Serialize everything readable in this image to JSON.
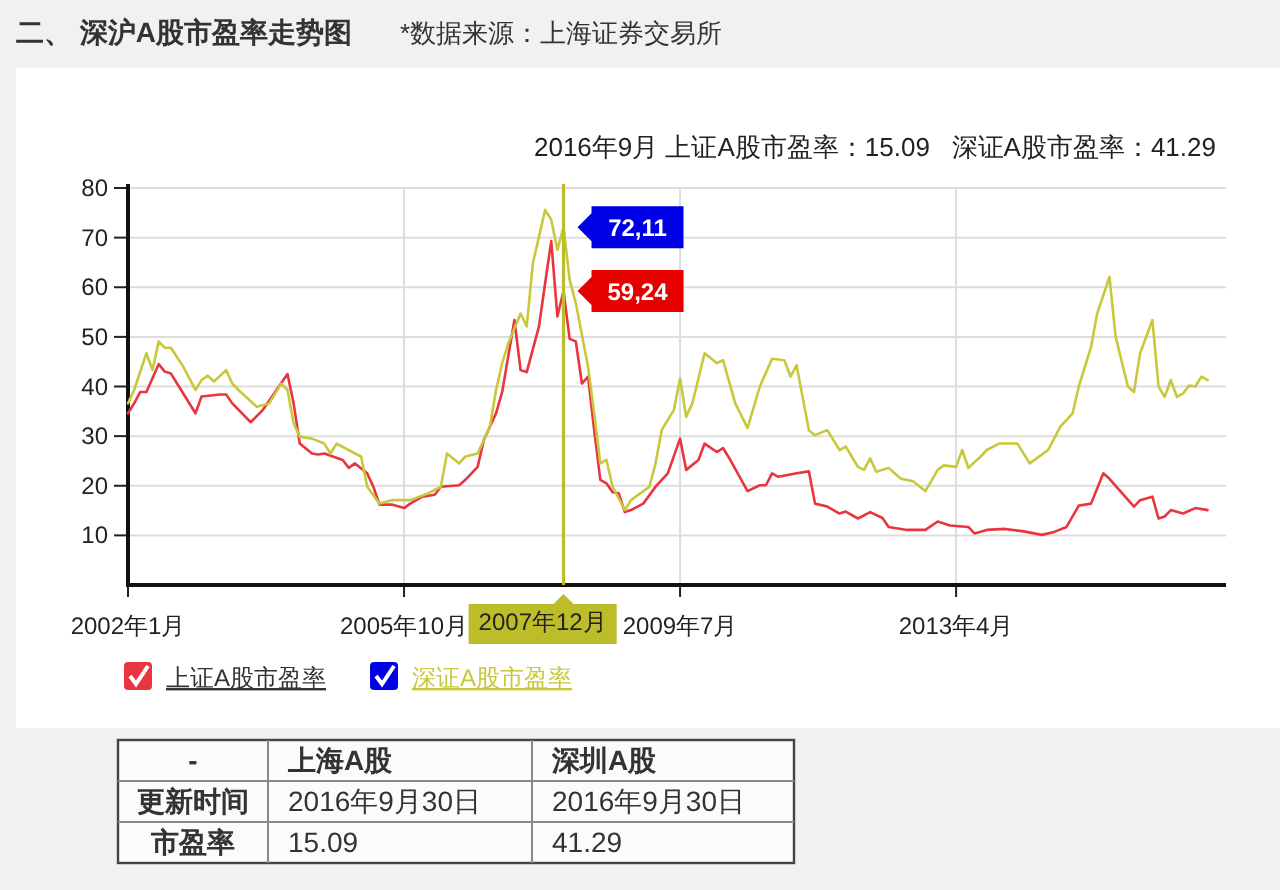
{
  "chart_data": [
    {
      "type": "line",
      "title": "二、 深沪A股市盈率走势图",
      "subtitle": "2016年9月 上证A股市盈率：15.09   深证A股市盈率：41.29",
      "annotations": [
        "*数据来源：上海证券交易所",
        {
          "text": "72,11",
          "x": "2007-12",
          "y": 72.11
        },
        {
          "text": "59,24",
          "x": "2007-12",
          "y": 59.24
        }
      ],
      "xlim": [
        "2002-01",
        "2016-12"
      ],
      "xticks": [
        {
          "value": "2002-01",
          "label": "2002年1月"
        },
        {
          "value": "2005-10",
          "label": "2005年10月"
        },
        {
          "value": "2009-07",
          "label": "2009年7月"
        },
        {
          "value": "2013-04",
          "label": "2013年4月"
        }
      ],
      "ylim": [
        0,
        80
      ],
      "yticks": [
        10,
        20,
        30,
        40,
        50,
        60,
        70,
        80
      ],
      "grid": true,
      "legend": "bottom",
      "ref_lines": [
        {
          "axis": "x",
          "value": "2007-12",
          "label": "2007年12月",
          "color": "#bdbd2a"
        }
      ],
      "series": [
        {
          "name": "上证A股市盈率",
          "color": "#e8353f",
          "x": [
            "2002-01",
            "2002-02",
            "2002-03",
            "2002-04",
            "2002-06",
            "2002-07",
            "2002-08",
            "2002-09",
            "2002-12",
            "2003-01",
            "2003-04",
            "2003-05",
            "2003-06",
            "2003-09",
            "2003-11",
            "2004-03",
            "2004-04",
            "2004-05",
            "2004-07",
            "2004-08",
            "2004-09",
            "2004-12",
            "2005-01",
            "2005-02",
            "2005-04",
            "2005-05",
            "2005-06",
            "2005-08",
            "2005-10",
            "2005-11",
            "2006-01",
            "2006-03",
            "2006-04",
            "2006-07",
            "2006-08",
            "2006-10",
            "2006-11",
            "2007-01",
            "2007-02",
            "2007-04",
            "2007-05",
            "2007-06",
            "2007-08",
            "2007-09",
            "2007-10",
            "2007-11",
            "2007-12",
            "2008-01",
            "2008-02",
            "2008-03",
            "2008-04",
            "2008-05",
            "2008-06",
            "2008-07",
            "2008-08",
            "2008-09",
            "2008-10",
            "2008-11",
            "2009-01",
            "2009-03",
            "2009-05",
            "2009-07",
            "2009-08",
            "2009-10",
            "2009-11",
            "2010-01",
            "2010-02",
            "2010-03",
            "2010-06",
            "2010-08",
            "2010-09",
            "2010-10",
            "2010-11",
            "2011-02",
            "2011-04",
            "2011-05",
            "2011-07",
            "2011-09",
            "2011-10",
            "2011-12",
            "2012-02",
            "2012-04",
            "2012-05",
            "2012-08",
            "2012-11",
            "2013-01",
            "2013-03",
            "2013-06",
            "2013-07",
            "2013-09",
            "2013-12",
            "2014-03",
            "2014-06",
            "2014-08",
            "2014-10",
            "2014-12",
            "2015-02",
            "2015-04",
            "2015-05",
            "2015-09",
            "2015-10",
            "2015-12",
            "2016-01",
            "2016-02",
            "2016-03",
            "2016-05",
            "2016-07",
            "2016-09"
          ],
          "values": [
            34.6,
            36.6,
            38.9,
            38.9,
            44.5,
            43.0,
            42.6,
            40.6,
            34.6,
            38.0,
            38.4,
            38.4,
            36.6,
            32.8,
            35.3,
            42.5,
            36.6,
            28.5,
            26.5,
            26.3,
            26.5,
            25.2,
            23.6,
            24.5,
            22.5,
            19.8,
            16.2,
            16.2,
            15.5,
            16.4,
            17.8,
            18.2,
            19.8,
            20.1,
            21.2,
            23.8,
            29.2,
            34.6,
            38.9,
            53.4,
            43.3,
            42.9,
            52.1,
            60.8,
            69.3,
            54.1,
            59.24,
            49.6,
            49.1,
            40.6,
            42.0,
            31.2,
            21.2,
            20.5,
            18.7,
            18.5,
            14.7,
            15.1,
            16.4,
            19.8,
            22.5,
            29.5,
            23.2,
            25.2,
            28.5,
            26.8,
            27.6,
            25.6,
            18.9,
            20.1,
            20.1,
            22.5,
            21.8,
            22.5,
            22.9,
            16.4,
            15.8,
            14.4,
            14.8,
            13.4,
            14.7,
            13.5,
            11.7,
            11.1,
            11.1,
            12.8,
            12.0,
            11.7,
            10.4,
            11.1,
            11.3,
            10.8,
            10.1,
            10.7,
            11.7,
            16.0,
            16.4,
            22.5,
            21.4,
            15.8,
            17.1,
            17.8,
            13.4,
            13.8,
            15.1,
            14.4,
            15.5,
            15.09
          ]
        },
        {
          "name": "深证A股市盈率",
          "color": "#c8c83c",
          "x": [
            "2002-01",
            "2002-02",
            "2002-04",
            "2002-05",
            "2002-06",
            "2002-07",
            "2002-08",
            "2002-10",
            "2002-12",
            "2003-01",
            "2003-02",
            "2003-03",
            "2003-05",
            "2003-06",
            "2003-07",
            "2003-10",
            "2003-12",
            "2004-02",
            "2004-03",
            "2004-04",
            "2004-05",
            "2004-07",
            "2004-09",
            "2004-10",
            "2004-11",
            "2005-02",
            "2005-03",
            "2005-04",
            "2005-06",
            "2005-08",
            "2005-11",
            "2006-02",
            "2006-04",
            "2006-05",
            "2006-07",
            "2006-08",
            "2006-10",
            "2006-12",
            "2007-01",
            "2007-02",
            "2007-03",
            "2007-05",
            "2007-06",
            "2007-07",
            "2007-09",
            "2007-10",
            "2007-11",
            "2007-12",
            "2008-01",
            "2008-02",
            "2008-04",
            "2008-05",
            "2008-06",
            "2008-07",
            "2008-08",
            "2008-10",
            "2008-11",
            "2009-02",
            "2009-03",
            "2009-04",
            "2009-06",
            "2009-07",
            "2009-08",
            "2009-09",
            "2009-11",
            "2010-01",
            "2010-02",
            "2010-04",
            "2010-06",
            "2010-08",
            "2010-10",
            "2010-12",
            "2011-01",
            "2011-02",
            "2011-04",
            "2011-05",
            "2011-07",
            "2011-09",
            "2011-10",
            "2011-12",
            "2012-01",
            "2012-02",
            "2012-03",
            "2012-05",
            "2012-07",
            "2012-09",
            "2012-11",
            "2013-01",
            "2013-02",
            "2013-04",
            "2013-05",
            "2013-06",
            "2013-08",
            "2013-09",
            "2013-11",
            "2014-02",
            "2014-04",
            "2014-07",
            "2014-09",
            "2014-11",
            "2014-12",
            "2015-02",
            "2015-03",
            "2015-05",
            "2015-06",
            "2015-08",
            "2015-09",
            "2015-10",
            "2015-12",
            "2016-01",
            "2016-02",
            "2016-03",
            "2016-04",
            "2016-05",
            "2016-06",
            "2016-07",
            "2016-08",
            "2016-09"
          ],
          "values": [
            36.6,
            39.3,
            46.7,
            43.3,
            49.1,
            47.8,
            47.8,
            44.0,
            39.3,
            41.3,
            42.2,
            41.0,
            43.3,
            40.6,
            39.3,
            35.9,
            36.6,
            40.6,
            39.3,
            32.6,
            29.9,
            29.5,
            28.5,
            26.5,
            28.5,
            26.5,
            25.9,
            19.8,
            16.4,
            17.1,
            17.1,
            18.5,
            19.8,
            26.5,
            24.5,
            25.9,
            26.5,
            31.9,
            39.3,
            44.7,
            48.7,
            54.7,
            52.1,
            64.8,
            75.6,
            73.6,
            67.5,
            72.11,
            61.5,
            56.8,
            44.0,
            34.6,
            24.5,
            25.2,
            19.8,
            15.1,
            17.1,
            19.8,
            24.5,
            31.2,
            35.3,
            41.6,
            33.9,
            36.6,
            46.7,
            44.7,
            45.3,
            36.6,
            31.6,
            40.0,
            45.6,
            45.3,
            42.0,
            44.3,
            31.2,
            30.2,
            31.2,
            27.2,
            27.9,
            23.8,
            23.2,
            25.5,
            22.8,
            23.6,
            21.4,
            20.9,
            18.9,
            23.2,
            24.1,
            23.8,
            27.2,
            23.6,
            25.9,
            27.2,
            28.5,
            28.5,
            24.5,
            27.2,
            31.9,
            34.6,
            40.0,
            48.0,
            54.7,
            62.1,
            50.1,
            40.0,
            38.9,
            46.7,
            53.4,
            40.0,
            37.9,
            41.3,
            37.9,
            38.6,
            40.2,
            40.0,
            42.0,
            41.29
          ]
        }
      ]
    },
    {
      "type": "other",
      "annotations": [
        "-",
        "上海A股",
        "深圳A股",
        "更新时间",
        "2016年9月30日",
        "2016年9月30日",
        "市盈率",
        "15.09",
        "41.29"
      ]
    }
  ]
}
